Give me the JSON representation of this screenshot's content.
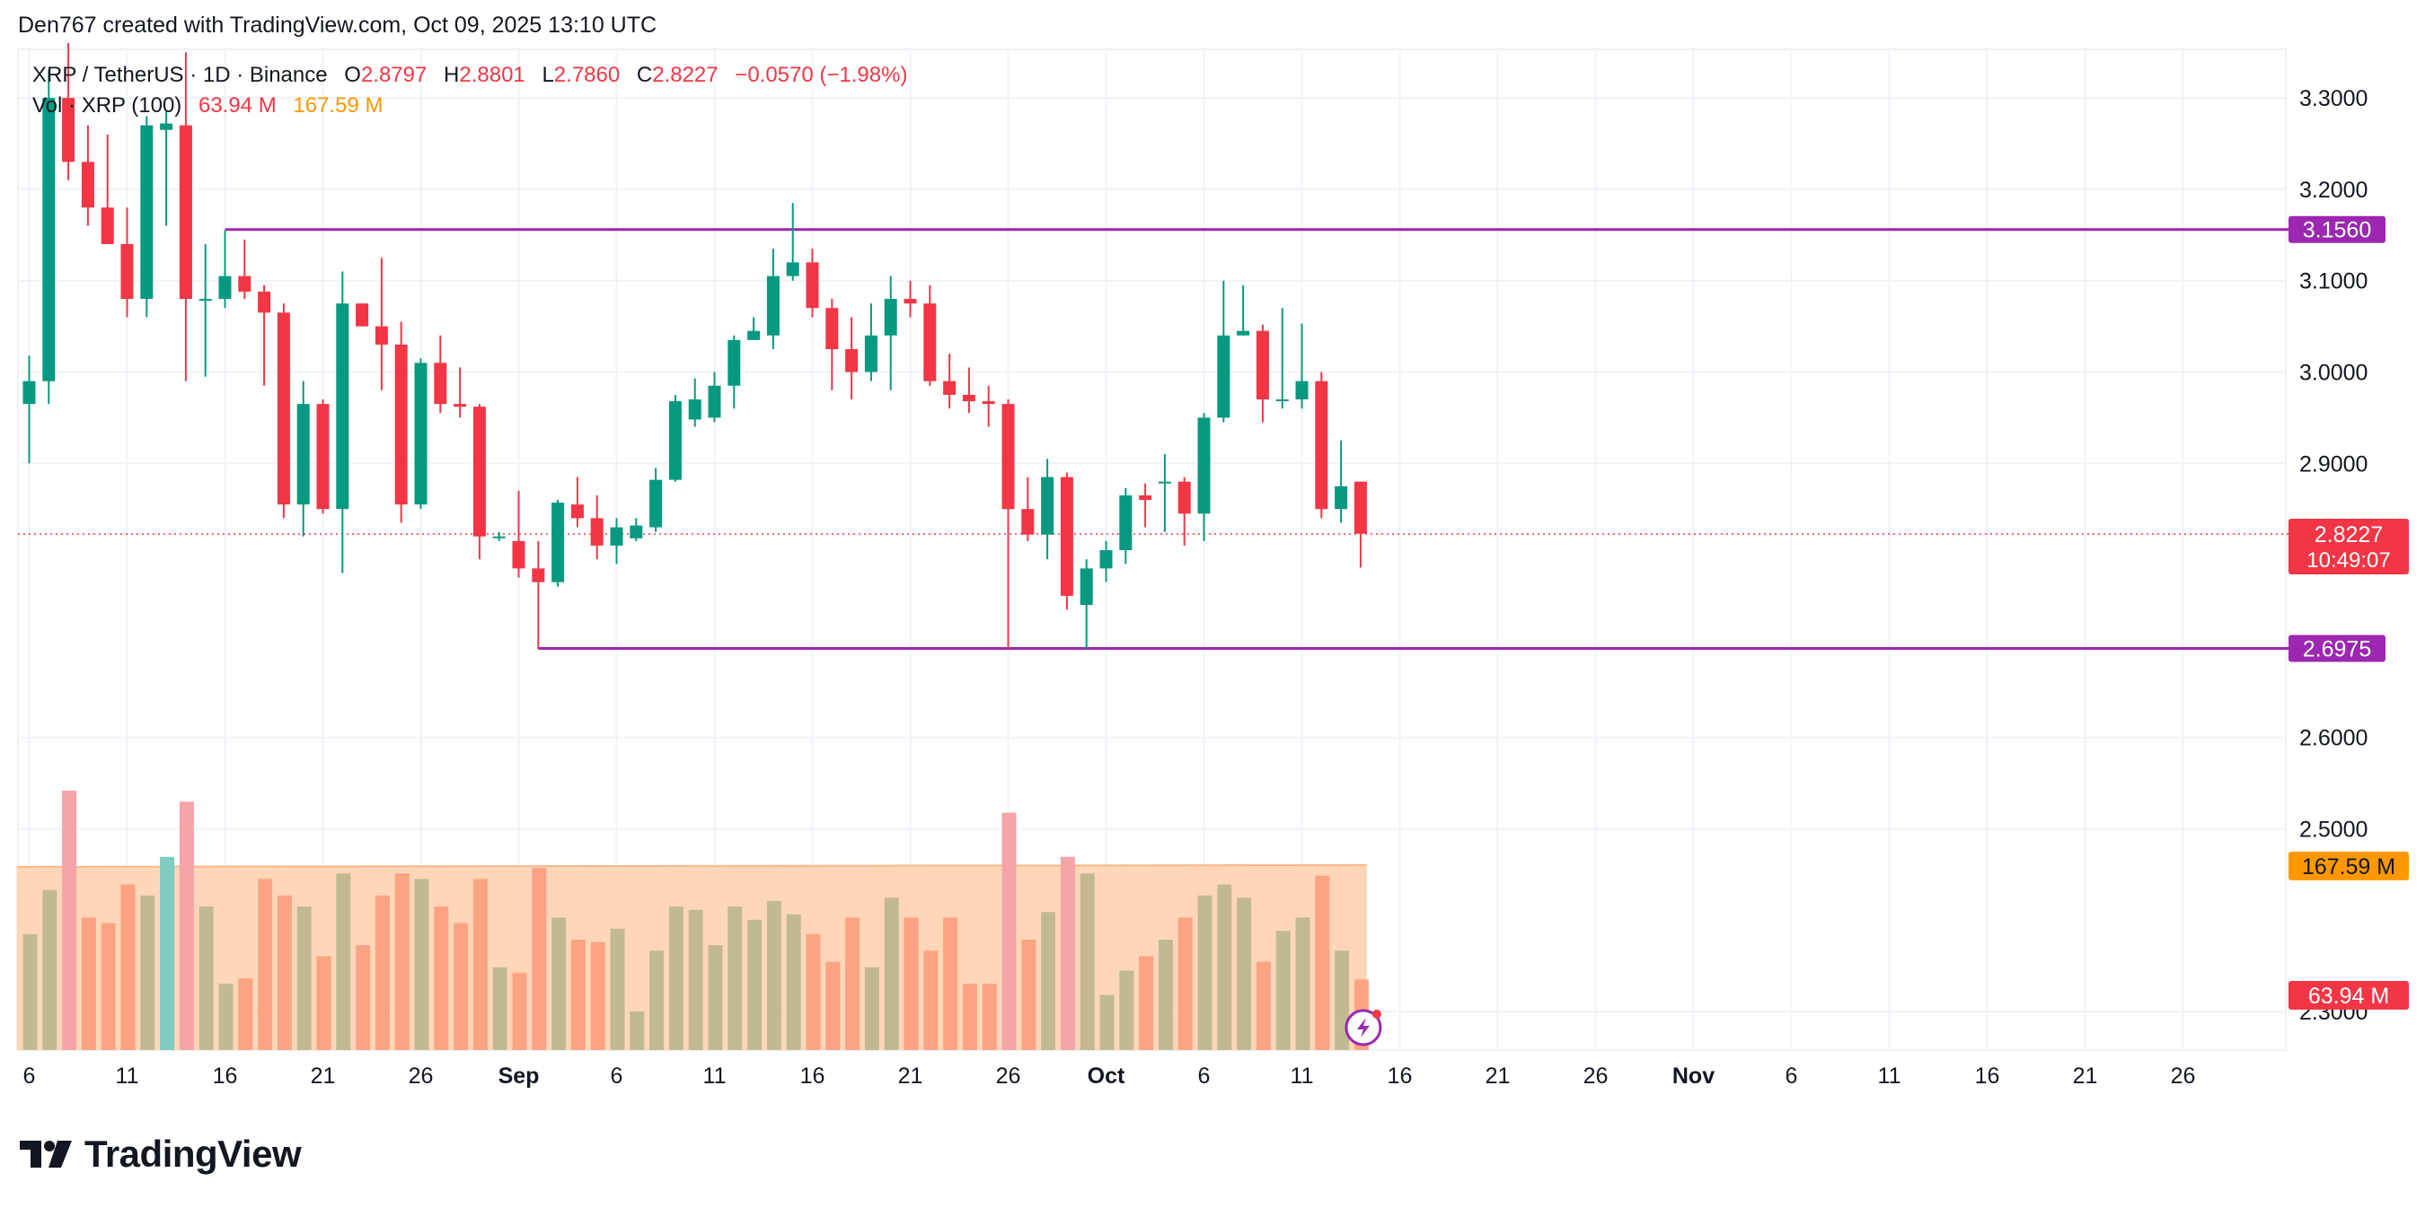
{
  "credit": "Den767 created with TradingView.com, Oct 09, 2025 13:10 UTC",
  "legend": {
    "symbol": "XRP / TetherUS · 1D · Binance",
    "o_label": "O",
    "o_value": "2.8797",
    "h_label": "H",
    "h_value": "2.8801",
    "l_label": "L",
    "l_value": "2.7860",
    "c_label": "C",
    "c_value": "2.8227",
    "change": "−0.0570 (−1.98%)",
    "vol_label": "Vol · XRP (100)",
    "vol_value": "63.94 M",
    "vol_ma_value": "167.59 M"
  },
  "brand": {
    "name": "TradingView"
  },
  "colors": {
    "up": "#089981",
    "down": "#f23645",
    "vol_up": "#c2b993",
    "vol_down": "#fca384",
    "vol_up_hi": "#7fcbbf",
    "vol_down_hi": "#f6a4a8",
    "ma_fill": "#ffd3b0",
    "ma_line": "#f7b88a",
    "hline": "#9c27b0",
    "orange": "#ff9800"
  },
  "chart_data": {
    "type": "candlestick",
    "title": "XRP / TetherUS · 1D · Binance",
    "ylim": [
      2.36,
      3.37
    ],
    "y_ticks": [
      "3.3000",
      "3.2000",
      "3.1000",
      "3.0000",
      "2.9000",
      "2.6000",
      "2.5000",
      "2.3000"
    ],
    "x_ticks": [
      "6",
      "11",
      "16",
      "21",
      "26",
      "Sep",
      "6",
      "11",
      "16",
      "21",
      "26",
      "Oct",
      "6",
      "11",
      "16",
      "21",
      "26",
      "Nov",
      "6",
      "11",
      "16",
      "21",
      "26"
    ],
    "horizontal_lines": [
      {
        "label": "3.1560",
        "value": 3.156,
        "start_index": 10
      },
      {
        "label": "2.6975",
        "value": 2.6975,
        "start_index": 26
      }
    ],
    "last_price": {
      "label": "2.8227",
      "countdown": "10:49:07",
      "value": 2.8227
    },
    "volume_ma_label": "167.59 M",
    "volume_label": "63.94 M",
    "volume_ma": 167.59,
    "volume_ylim": [
      0,
      340
    ],
    "candles": [
      {
        "o": 2.965,
        "h": 3.018,
        "l": 2.9,
        "c": 2.99,
        "v": 105
      },
      {
        "o": 2.99,
        "h": 3.33,
        "l": 2.965,
        "c": 3.3,
        "v": 145
      },
      {
        "o": 3.3,
        "h": 3.36,
        "l": 3.21,
        "c": 3.23,
        "v": 235
      },
      {
        "o": 3.23,
        "h": 3.27,
        "l": 3.16,
        "c": 3.18,
        "v": 120
      },
      {
        "o": 3.18,
        "h": 3.26,
        "l": 3.14,
        "c": 3.14,
        "v": 115
      },
      {
        "o": 3.14,
        "h": 3.18,
        "l": 3.06,
        "c": 3.08,
        "v": 150
      },
      {
        "o": 3.08,
        "h": 3.28,
        "l": 3.06,
        "c": 3.27,
        "v": 140
      },
      {
        "o": 3.265,
        "h": 3.285,
        "l": 3.16,
        "c": 3.272,
        "v": 175
      },
      {
        "o": 3.27,
        "h": 3.35,
        "l": 2.99,
        "c": 3.08,
        "v": 225
      },
      {
        "o": 3.08,
        "h": 3.14,
        "l": 2.995,
        "c": 3.08,
        "v": 130
      },
      {
        "o": 3.08,
        "h": 3.155,
        "l": 3.07,
        "c": 3.105,
        "v": 60
      },
      {
        "o": 3.105,
        "h": 3.145,
        "l": 3.08,
        "c": 3.088,
        "v": 65
      },
      {
        "o": 3.088,
        "h": 3.095,
        "l": 2.985,
        "c": 3.065,
        "v": 155
      },
      {
        "o": 3.065,
        "h": 3.075,
        "l": 2.84,
        "c": 2.855,
        "v": 140
      },
      {
        "o": 2.855,
        "h": 2.99,
        "l": 2.82,
        "c": 2.965,
        "v": 130
      },
      {
        "o": 2.965,
        "h": 2.97,
        "l": 2.845,
        "c": 2.85,
        "v": 85
      },
      {
        "o": 2.85,
        "h": 3.11,
        "l": 2.78,
        "c": 3.075,
        "v": 160
      },
      {
        "o": 3.075,
        "h": 3.075,
        "l": 3.05,
        "c": 3.05,
        "v": 95
      },
      {
        "o": 3.05,
        "h": 3.125,
        "l": 2.98,
        "c": 3.03,
        "v": 140
      },
      {
        "o": 3.03,
        "h": 3.055,
        "l": 2.835,
        "c": 2.855,
        "v": 160
      },
      {
        "o": 2.855,
        "h": 3.015,
        "l": 2.85,
        "c": 3.01,
        "v": 155
      },
      {
        "o": 3.01,
        "h": 3.04,
        "l": 2.955,
        "c": 2.965,
        "v": 130
      },
      {
        "o": 2.965,
        "h": 3.005,
        "l": 2.95,
        "c": 2.962,
        "v": 115
      },
      {
        "o": 2.962,
        "h": 2.965,
        "l": 2.795,
        "c": 2.82,
        "v": 155
      },
      {
        "o": 2.82,
        "h": 2.825,
        "l": 2.815,
        "c": 2.82,
        "v": 75
      },
      {
        "o": 2.815,
        "h": 2.87,
        "l": 2.775,
        "c": 2.785,
        "v": 70
      },
      {
        "o": 2.785,
        "h": 2.815,
        "l": 2.697,
        "c": 2.77,
        "v": 165
      },
      {
        "o": 2.77,
        "h": 2.86,
        "l": 2.765,
        "c": 2.857,
        "v": 120
      },
      {
        "o": 2.855,
        "h": 2.885,
        "l": 2.83,
        "c": 2.84,
        "v": 100
      },
      {
        "o": 2.84,
        "h": 2.865,
        "l": 2.795,
        "c": 2.81,
        "v": 98
      },
      {
        "o": 2.81,
        "h": 2.84,
        "l": 2.79,
        "c": 2.83,
        "v": 110
      },
      {
        "o": 2.818,
        "h": 2.84,
        "l": 2.815,
        "c": 2.832,
        "v": 35
      },
      {
        "o": 2.83,
        "h": 2.895,
        "l": 2.825,
        "c": 2.882,
        "v": 90
      },
      {
        "o": 2.882,
        "h": 2.975,
        "l": 2.88,
        "c": 2.968,
        "v": 130
      },
      {
        "o": 2.948,
        "h": 2.993,
        "l": 2.94,
        "c": 2.97,
        "v": 127
      },
      {
        "o": 2.95,
        "h": 3.0,
        "l": 2.945,
        "c": 2.985,
        "v": 95
      },
      {
        "o": 2.985,
        "h": 3.04,
        "l": 2.96,
        "c": 3.035,
        "v": 130
      },
      {
        "o": 3.035,
        "h": 3.06,
        "l": 3.04,
        "c": 3.045,
        "v": 118
      },
      {
        "o": 3.04,
        "h": 3.135,
        "l": 3.025,
        "c": 3.105,
        "v": 135
      },
      {
        "o": 3.105,
        "h": 3.185,
        "l": 3.1,
        "c": 3.12,
        "v": 123
      },
      {
        "o": 3.12,
        "h": 3.135,
        "l": 3.06,
        "c": 3.07,
        "v": 105
      },
      {
        "o": 3.07,
        "h": 3.08,
        "l": 2.98,
        "c": 3.025,
        "v": 80
      },
      {
        "o": 3.025,
        "h": 3.06,
        "l": 2.97,
        "c": 3.0,
        "v": 120
      },
      {
        "o": 3.0,
        "h": 3.075,
        "l": 2.99,
        "c": 3.04,
        "v": 75
      },
      {
        "o": 3.04,
        "h": 3.105,
        "l": 2.98,
        "c": 3.08,
        "v": 138
      },
      {
        "o": 3.08,
        "h": 3.1,
        "l": 3.06,
        "c": 3.075,
        "v": 120
      },
      {
        "o": 3.075,
        "h": 3.095,
        "l": 2.985,
        "c": 2.99,
        "v": 90
      },
      {
        "o": 2.99,
        "h": 3.02,
        "l": 2.96,
        "c": 2.975,
        "v": 120
      },
      {
        "o": 2.975,
        "h": 3.005,
        "l": 2.955,
        "c": 2.968,
        "v": 60
      },
      {
        "o": 2.968,
        "h": 2.985,
        "l": 2.94,
        "c": 2.965,
        "v": 60
      },
      {
        "o": 2.965,
        "h": 2.97,
        "l": 2.697,
        "c": 2.85,
        "v": 215
      },
      {
        "o": 2.85,
        "h": 2.885,
        "l": 2.815,
        "c": 2.822,
        "v": 100
      },
      {
        "o": 2.822,
        "h": 2.905,
        "l": 2.795,
        "c": 2.885,
        "v": 125
      },
      {
        "o": 2.885,
        "h": 2.89,
        "l": 2.74,
        "c": 2.755,
        "v": 175
      },
      {
        "o": 2.745,
        "h": 2.795,
        "l": 2.697,
        "c": 2.785,
        "v": 160
      },
      {
        "o": 2.785,
        "h": 2.815,
        "l": 2.77,
        "c": 2.805,
        "v": 50
      },
      {
        "o": 2.805,
        "h": 2.873,
        "l": 2.79,
        "c": 2.865,
        "v": 72
      },
      {
        "o": 2.865,
        "h": 2.878,
        "l": 2.83,
        "c": 2.86,
        "v": 85
      },
      {
        "o": 2.88,
        "h": 2.91,
        "l": 2.825,
        "c": 2.88,
        "v": 100
      },
      {
        "o": 2.88,
        "h": 2.885,
        "l": 2.81,
        "c": 2.845,
        "v": 120
      },
      {
        "o": 2.845,
        "h": 2.955,
        "l": 2.815,
        "c": 2.95,
        "v": 140
      },
      {
        "o": 2.95,
        "h": 3.1,
        "l": 2.945,
        "c": 3.04,
        "v": 150
      },
      {
        "o": 3.04,
        "h": 3.095,
        "l": 3.04,
        "c": 3.045,
        "v": 138
      },
      {
        "o": 3.045,
        "h": 3.052,
        "l": 2.945,
        "c": 2.97,
        "v": 80
      },
      {
        "o": 2.97,
        "h": 3.07,
        "l": 2.96,
        "c": 2.97,
        "v": 108
      },
      {
        "o": 2.97,
        "h": 3.053,
        "l": 2.96,
        "c": 2.99,
        "v": 120
      },
      {
        "o": 2.99,
        "h": 3.0,
        "l": 2.84,
        "c": 2.85,
        "v": 158
      },
      {
        "o": 2.85,
        "h": 2.925,
        "l": 2.835,
        "c": 2.875,
        "v": 90
      },
      {
        "o": 2.88,
        "h": 2.88,
        "l": 2.786,
        "c": 2.823,
        "v": 64
      }
    ]
  }
}
